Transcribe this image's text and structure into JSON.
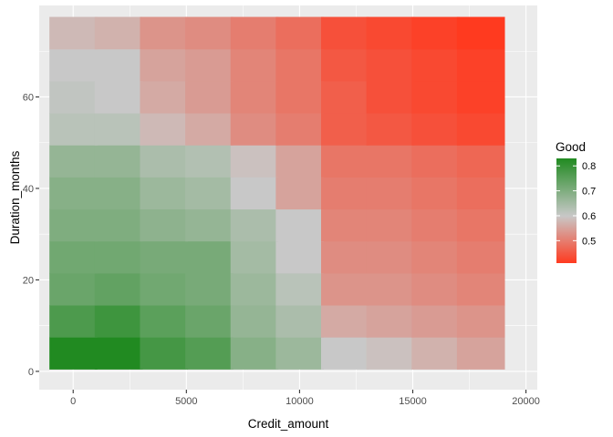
{
  "chart_data": {
    "type": "heatmap",
    "title": "",
    "xlabel": "Credit_amount",
    "ylabel": "Duration_months",
    "x_ticks": [
      0,
      5000,
      10000,
      15000,
      20000
    ],
    "y_ticks": [
      0,
      20,
      40,
      60
    ],
    "xlim": [
      -1500,
      20500
    ],
    "ylim": [
      -4,
      80
    ],
    "x_centers": [
      0,
      2000,
      4000,
      6000,
      8000,
      10000,
      12000,
      14000,
      16000,
      18000
    ],
    "x_cell_width": 2100,
    "y_centers": [
      4,
      11,
      18,
      25,
      32,
      39,
      46,
      53,
      60,
      67,
      74
    ],
    "y_cell_height": 7,
    "values": [
      [
        0.83,
        0.83,
        0.78,
        0.76,
        0.69,
        0.66,
        0.6,
        0.59,
        0.57,
        0.55
      ],
      [
        0.77,
        0.79,
        0.75,
        0.73,
        0.67,
        0.64,
        0.56,
        0.55,
        0.54,
        0.53
      ],
      [
        0.73,
        0.74,
        0.72,
        0.71,
        0.66,
        0.62,
        0.53,
        0.53,
        0.52,
        0.51
      ],
      [
        0.72,
        0.72,
        0.71,
        0.71,
        0.65,
        0.6,
        0.52,
        0.52,
        0.51,
        0.5
      ],
      [
        0.7,
        0.7,
        0.68,
        0.67,
        0.64,
        0.6,
        0.51,
        0.51,
        0.5,
        0.49
      ],
      [
        0.69,
        0.69,
        0.66,
        0.65,
        0.6,
        0.55,
        0.5,
        0.5,
        0.49,
        0.48
      ],
      [
        0.67,
        0.67,
        0.64,
        0.63,
        0.59,
        0.55,
        0.49,
        0.49,
        0.48,
        0.47
      ],
      [
        0.62,
        0.62,
        0.58,
        0.56,
        0.52,
        0.5,
        0.46,
        0.45,
        0.44,
        0.43
      ],
      [
        0.61,
        0.6,
        0.56,
        0.54,
        0.51,
        0.49,
        0.46,
        0.44,
        0.43,
        0.42
      ],
      [
        0.6,
        0.6,
        0.55,
        0.54,
        0.51,
        0.49,
        0.45,
        0.44,
        0.43,
        0.42
      ],
      [
        0.58,
        0.57,
        0.53,
        0.52,
        0.5,
        0.48,
        0.44,
        0.43,
        0.42,
        0.41
      ]
    ],
    "legend": {
      "title": "Good",
      "labels": [
        "0.5",
        "0.6",
        "0.7",
        "0.8"
      ],
      "label_values": [
        0.5,
        0.6,
        0.7,
        0.8
      ],
      "min": 0.41,
      "max": 0.83,
      "placement": "right"
    },
    "colors": {
      "low": "#ff3a1f",
      "mid": "#c8c8c8",
      "high": "#218a21",
      "midpoint": 0.6,
      "panel": "#ebebeb",
      "grid": "#ffffff"
    },
    "grid": true
  }
}
